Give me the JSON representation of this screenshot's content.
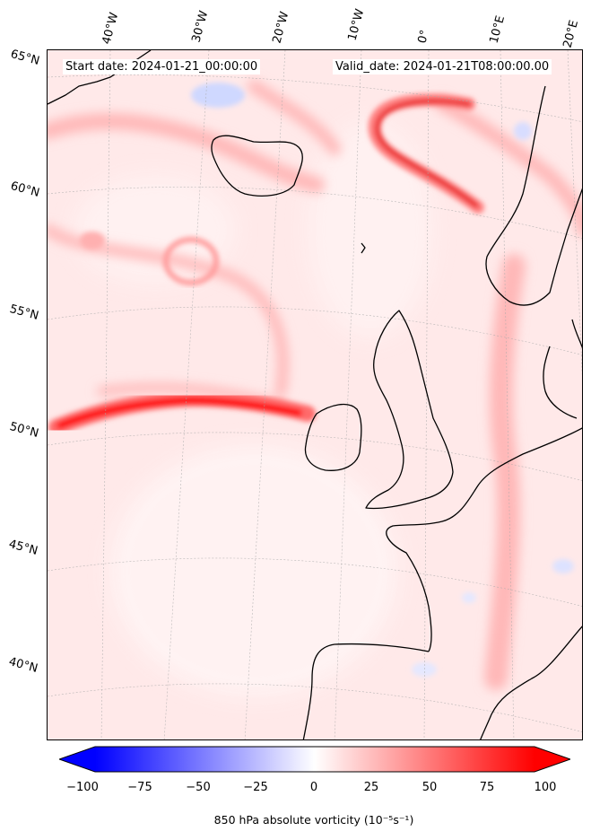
{
  "header": {
    "start_date": "Start date: 2024-01-21_00:00:00",
    "valid_date": "Valid_date: 2024-01-21T08:00:00.00"
  },
  "lon_labels": [
    "40°W",
    "30°W",
    "20°W",
    "10°W",
    "0°",
    "10°E",
    "20°E"
  ],
  "lat_labels": [
    "65°N",
    "60°N",
    "55°N",
    "50°N",
    "45°N",
    "40°N"
  ],
  "colorbar": {
    "ticks": [
      "−100",
      "−75",
      "−50",
      "−25",
      "0",
      "25",
      "50",
      "75",
      "100"
    ],
    "label": "850 hPa absolute vorticity (10⁻⁵s⁻¹)",
    "min_color": "#0000ff",
    "mid_color": "#ffffff",
    "max_color": "#ff0000"
  },
  "colors": {
    "coastline": "#000000",
    "field_background": "#ffe8e8",
    "jet_streak": "#ff0000"
  }
}
